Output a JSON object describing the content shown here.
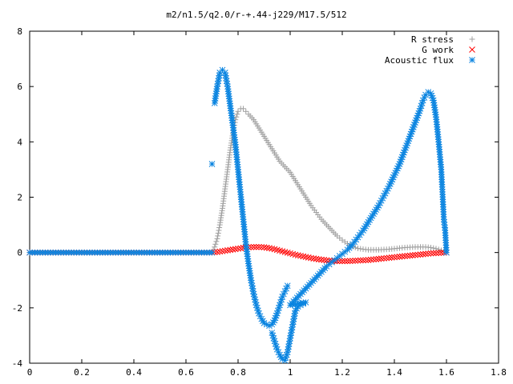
{
  "chart_data": {
    "type": "scatter",
    "title": "m2/n1.5/q2.0/r-+.44-j229/M17.5/512",
    "xlabel": "",
    "ylabel": "",
    "xlim": [
      0,
      1.8
    ],
    "ylim": [
      -4,
      8
    ],
    "xticks": [
      "0",
      "0.2",
      "0.4",
      "0.6",
      "0.8",
      "1",
      "1.2",
      "1.4",
      "1.6",
      "1.8"
    ],
    "yticks": [
      "-4",
      "-2",
      "0",
      "2",
      "4",
      "6",
      "8"
    ],
    "grid": false,
    "legend_position": "top-right",
    "series": [
      {
        "name": "R stress",
        "marker": "plus",
        "color": "#a0a0a0",
        "points": [
          [
            0.0,
            0.0
          ],
          [
            0.05,
            0.0
          ],
          [
            0.1,
            0.0
          ],
          [
            0.15,
            0.0
          ],
          [
            0.2,
            0.0
          ],
          [
            0.25,
            0.0
          ],
          [
            0.3,
            0.0
          ],
          [
            0.35,
            0.0
          ],
          [
            0.4,
            0.0
          ],
          [
            0.45,
            0.0
          ],
          [
            0.5,
            0.0
          ],
          [
            0.55,
            0.0
          ],
          [
            0.6,
            0.0
          ],
          [
            0.65,
            0.0
          ],
          [
            0.7,
            0.0
          ],
          [
            0.71,
            0.2
          ],
          [
            0.72,
            0.5
          ],
          [
            0.73,
            1.0
          ],
          [
            0.74,
            1.6
          ],
          [
            0.75,
            2.3
          ],
          [
            0.76,
            3.0
          ],
          [
            0.77,
            3.7
          ],
          [
            0.78,
            4.3
          ],
          [
            0.79,
            4.8
          ],
          [
            0.8,
            5.1
          ],
          [
            0.81,
            5.2
          ],
          [
            0.82,
            5.2
          ],
          [
            0.83,
            5.1
          ],
          [
            0.84,
            5.0
          ],
          [
            0.86,
            4.8
          ],
          [
            0.88,
            4.5
          ],
          [
            0.9,
            4.2
          ],
          [
            0.92,
            3.9
          ],
          [
            0.94,
            3.6
          ],
          [
            0.96,
            3.3
          ],
          [
            0.98,
            3.1
          ],
          [
            1.0,
            2.9
          ],
          [
            1.02,
            2.6
          ],
          [
            1.04,
            2.3
          ],
          [
            1.06,
            2.0
          ],
          [
            1.08,
            1.7
          ],
          [
            1.1,
            1.45
          ],
          [
            1.12,
            1.2
          ],
          [
            1.14,
            1.0
          ],
          [
            1.16,
            0.8
          ],
          [
            1.18,
            0.6
          ],
          [
            1.2,
            0.45
          ],
          [
            1.22,
            0.32
          ],
          [
            1.24,
            0.22
          ],
          [
            1.26,
            0.15
          ],
          [
            1.28,
            0.12
          ],
          [
            1.3,
            0.1
          ],
          [
            1.32,
            0.1
          ],
          [
            1.34,
            0.1
          ],
          [
            1.36,
            0.11
          ],
          [
            1.38,
            0.12
          ],
          [
            1.4,
            0.14
          ],
          [
            1.42,
            0.16
          ],
          [
            1.44,
            0.18
          ],
          [
            1.46,
            0.19
          ],
          [
            1.48,
            0.2
          ],
          [
            1.5,
            0.2
          ],
          [
            1.52,
            0.2
          ],
          [
            1.54,
            0.18
          ],
          [
            1.56,
            0.14
          ],
          [
            1.58,
            0.08
          ],
          [
            1.6,
            0.0
          ]
        ]
      },
      {
        "name": "G work",
        "marker": "cross",
        "color": "#ff0000",
        "points": [
          [
            0.0,
            0.0
          ],
          [
            0.05,
            0.0
          ],
          [
            0.1,
            0.0
          ],
          [
            0.15,
            0.0
          ],
          [
            0.2,
            0.0
          ],
          [
            0.25,
            0.0
          ],
          [
            0.3,
            0.0
          ],
          [
            0.35,
            0.0
          ],
          [
            0.4,
            0.0
          ],
          [
            0.45,
            0.0
          ],
          [
            0.5,
            0.0
          ],
          [
            0.55,
            0.0
          ],
          [
            0.6,
            0.0
          ],
          [
            0.65,
            0.0
          ],
          [
            0.7,
            0.0
          ],
          [
            0.72,
            0.02
          ],
          [
            0.74,
            0.05
          ],
          [
            0.76,
            0.08
          ],
          [
            0.78,
            0.11
          ],
          [
            0.8,
            0.14
          ],
          [
            0.82,
            0.17
          ],
          [
            0.84,
            0.19
          ],
          [
            0.86,
            0.2
          ],
          [
            0.88,
            0.2
          ],
          [
            0.9,
            0.19
          ],
          [
            0.92,
            0.16
          ],
          [
            0.94,
            0.12
          ],
          [
            0.96,
            0.07
          ],
          [
            0.98,
            0.02
          ],
          [
            1.0,
            -0.03
          ],
          [
            1.02,
            -0.08
          ],
          [
            1.04,
            -0.12
          ],
          [
            1.06,
            -0.16
          ],
          [
            1.08,
            -0.2
          ],
          [
            1.1,
            -0.23
          ],
          [
            1.12,
            -0.26
          ],
          [
            1.14,
            -0.28
          ],
          [
            1.16,
            -0.3
          ],
          [
            1.18,
            -0.31
          ],
          [
            1.2,
            -0.31
          ],
          [
            1.22,
            -0.31
          ],
          [
            1.24,
            -0.3
          ],
          [
            1.26,
            -0.29
          ],
          [
            1.28,
            -0.28
          ],
          [
            1.3,
            -0.27
          ],
          [
            1.32,
            -0.25
          ],
          [
            1.34,
            -0.23
          ],
          [
            1.36,
            -0.21
          ],
          [
            1.38,
            -0.19
          ],
          [
            1.4,
            -0.17
          ],
          [
            1.42,
            -0.15
          ],
          [
            1.44,
            -0.13
          ],
          [
            1.46,
            -0.11
          ],
          [
            1.48,
            -0.09
          ],
          [
            1.5,
            -0.07
          ],
          [
            1.52,
            -0.05
          ],
          [
            1.54,
            -0.03
          ],
          [
            1.56,
            -0.02
          ],
          [
            1.58,
            -0.01
          ],
          [
            1.6,
            0.0
          ]
        ]
      },
      {
        "name": "Acoustic flux",
        "marker": "star",
        "color": "#0a84e0",
        "points": [
          [
            0.0,
            0.0
          ],
          [
            0.05,
            0.0
          ],
          [
            0.1,
            0.0
          ],
          [
            0.15,
            0.0
          ],
          [
            0.2,
            0.0
          ],
          [
            0.25,
            0.0
          ],
          [
            0.3,
            0.0
          ],
          [
            0.35,
            0.0
          ],
          [
            0.4,
            0.0
          ],
          [
            0.45,
            0.0
          ],
          [
            0.5,
            0.0
          ],
          [
            0.55,
            0.0
          ],
          [
            0.6,
            0.0
          ],
          [
            0.65,
            0.0
          ],
          [
            0.7,
            0.0
          ],
          [
            0.7,
            3.2
          ],
          [
            0.71,
            5.4
          ],
          [
            0.72,
            6.0
          ],
          [
            0.73,
            6.5
          ],
          [
            0.74,
            6.6
          ],
          [
            0.75,
            6.5
          ],
          [
            0.76,
            6.0
          ],
          [
            0.77,
            5.3
          ],
          [
            0.78,
            4.6
          ],
          [
            0.79,
            3.9
          ],
          [
            0.8,
            3.0
          ],
          [
            0.81,
            2.1
          ],
          [
            0.82,
            1.2
          ],
          [
            0.83,
            0.3
          ],
          [
            0.84,
            -0.4
          ],
          [
            0.85,
            -1.0
          ],
          [
            0.86,
            -1.5
          ],
          [
            0.87,
            -1.9
          ],
          [
            0.88,
            -2.2
          ],
          [
            0.89,
            -2.4
          ],
          [
            0.9,
            -2.55
          ],
          [
            0.91,
            -2.6
          ],
          [
            0.92,
            -2.65
          ],
          [
            0.93,
            -2.6
          ],
          [
            0.94,
            -2.45
          ],
          [
            0.95,
            -2.2
          ],
          [
            0.96,
            -1.9
          ],
          [
            0.97,
            -1.6
          ],
          [
            0.98,
            -1.4
          ],
          [
            0.99,
            -1.2
          ],
          [
            0.93,
            -2.9
          ],
          [
            0.94,
            -3.2
          ],
          [
            0.95,
            -3.5
          ],
          [
            0.96,
            -3.7
          ],
          [
            0.97,
            -3.85
          ],
          [
            0.98,
            -3.9
          ],
          [
            0.99,
            -3.6
          ],
          [
            1.0,
            -3.1
          ],
          [
            1.01,
            -2.6
          ],
          [
            1.02,
            -2.1
          ],
          [
            1.03,
            -1.95
          ],
          [
            1.04,
            -1.9
          ],
          [
            1.05,
            -1.85
          ],
          [
            1.06,
            -1.8
          ],
          [
            1.0,
            -1.9
          ],
          [
            1.02,
            -1.7
          ],
          [
            1.04,
            -1.5
          ],
          [
            1.06,
            -1.3
          ],
          [
            1.08,
            -1.1
          ],
          [
            1.1,
            -0.9
          ],
          [
            1.12,
            -0.7
          ],
          [
            1.14,
            -0.5
          ],
          [
            1.16,
            -0.35
          ],
          [
            1.18,
            -0.2
          ],
          [
            1.2,
            -0.05
          ],
          [
            1.22,
            0.1
          ],
          [
            1.24,
            0.3
          ],
          [
            1.26,
            0.55
          ],
          [
            1.28,
            0.8
          ],
          [
            1.3,
            1.1
          ],
          [
            1.32,
            1.4
          ],
          [
            1.34,
            1.7
          ],
          [
            1.36,
            2.05
          ],
          [
            1.38,
            2.4
          ],
          [
            1.4,
            2.8
          ],
          [
            1.42,
            3.2
          ],
          [
            1.44,
            3.7
          ],
          [
            1.46,
            4.2
          ],
          [
            1.48,
            4.7
          ],
          [
            1.5,
            5.2
          ],
          [
            1.51,
            5.5
          ],
          [
            1.52,
            5.7
          ],
          [
            1.53,
            5.8
          ],
          [
            1.54,
            5.75
          ],
          [
            1.55,
            5.5
          ],
          [
            1.56,
            4.9
          ],
          [
            1.57,
            4.0
          ],
          [
            1.58,
            3.0
          ],
          [
            1.585,
            2.1
          ],
          [
            1.59,
            1.2
          ],
          [
            1.595,
            0.8
          ],
          [
            1.6,
            0.0
          ]
        ]
      }
    ]
  }
}
